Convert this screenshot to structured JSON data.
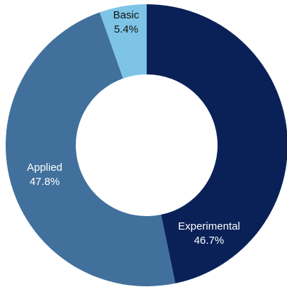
{
  "chart_data": {
    "type": "donut",
    "categories": [
      "Experimental",
      "Applied",
      "Basic"
    ],
    "values": [
      46.7,
      47.8,
      5.4
    ],
    "value_labels": [
      "46.7%",
      "47.8%",
      "5.4%"
    ],
    "colors": [
      "#0a2158",
      "#41709c",
      "#7ec4e6"
    ],
    "label_colors": [
      "#ffffff",
      "#ffffff",
      "#111111"
    ]
  }
}
